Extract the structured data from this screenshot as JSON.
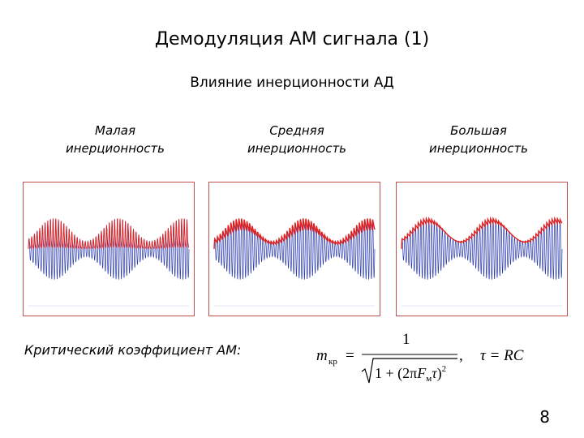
{
  "slide": {
    "title": "Демодуляция АМ сигнала (1)",
    "subtitle": "Влияние инерционности АД",
    "page_number": "8"
  },
  "panels": [
    {
      "caption_line1": "Малая",
      "caption_line2": "инерционность",
      "inertia": "low"
    },
    {
      "caption_line1": "Средняя",
      "caption_line2": "инерционность",
      "inertia": "medium"
    },
    {
      "caption_line1": "Большая",
      "caption_line2": "инерционность",
      "inertia": "high"
    }
  ],
  "critical": {
    "label": "Критический коэффициент АМ:",
    "formula_lhs": "m",
    "formula_lhs_sub": "кр",
    "formula_numerator": "1",
    "formula_tail": ",",
    "formula_tau": "τ = RC"
  },
  "colors": {
    "carrier": "#2a3bb0",
    "envelope": "#e02020",
    "frame": "#c0504d"
  }
}
